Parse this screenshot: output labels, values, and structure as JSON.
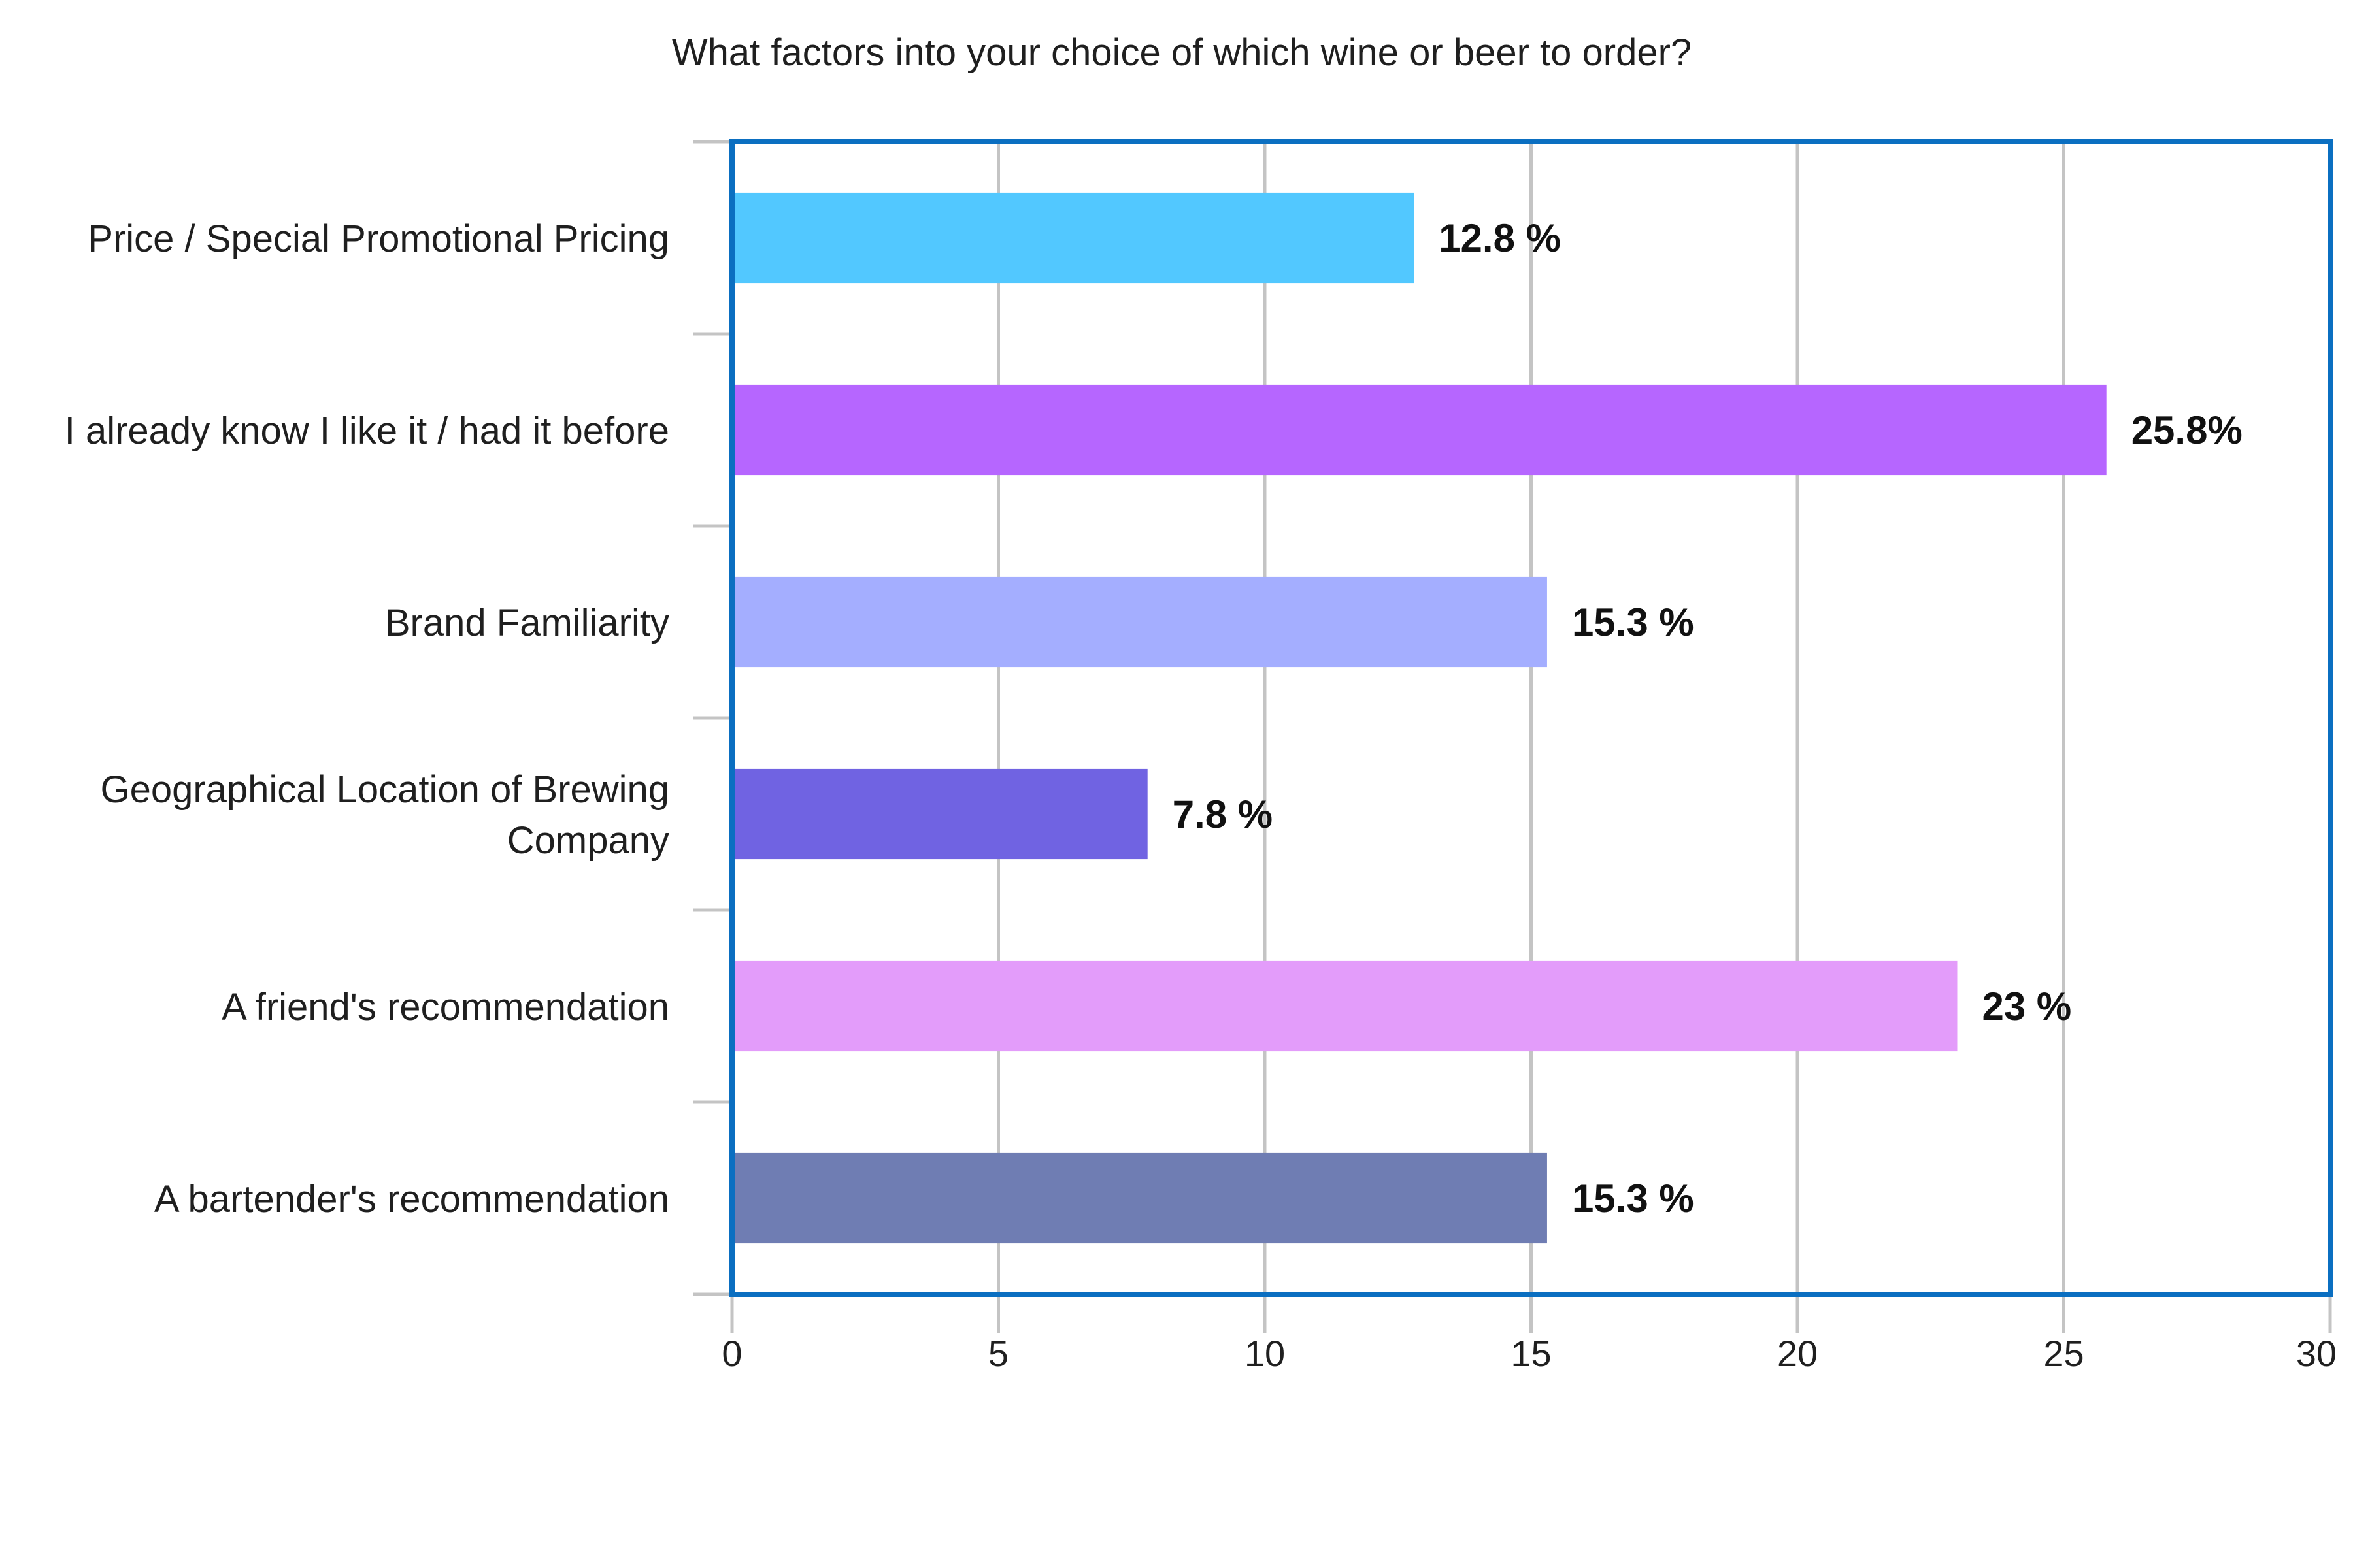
{
  "chart_data": {
    "type": "bar",
    "orientation": "horizontal",
    "title": "What factors into your choice of which wine or beer to order?",
    "categories": [
      [
        "Price / Special Promotional Pricing"
      ],
      [
        "I already know I like it / had it before"
      ],
      [
        "Brand Familiarity"
      ],
      [
        "Geographical Location of Brewing",
        "Company"
      ],
      [
        "A friend's recommendation"
      ],
      [
        "A bartender's recommendation"
      ]
    ],
    "values": [
      12.8,
      25.8,
      15.3,
      7.8,
      23,
      15.3
    ],
    "data_labels": [
      "12.8 %",
      "25.8%",
      "15.3 %",
      "7.8 %",
      "23 %",
      "15.3 %"
    ],
    "bar_colors": [
      "#52c8ff",
      "#b666ff",
      "#a4aeff",
      "#7063e2",
      "#e39cfa",
      "#6f7db3"
    ],
    "xlim": [
      0,
      30
    ],
    "x_ticks": [
      0,
      5,
      10,
      15,
      20,
      25,
      30
    ],
    "xlabel": "",
    "ylabel": "",
    "grid": "vertical",
    "legend": "none",
    "frame_color": "#0b6fc1",
    "grid_color": "#c4c4c4"
  }
}
